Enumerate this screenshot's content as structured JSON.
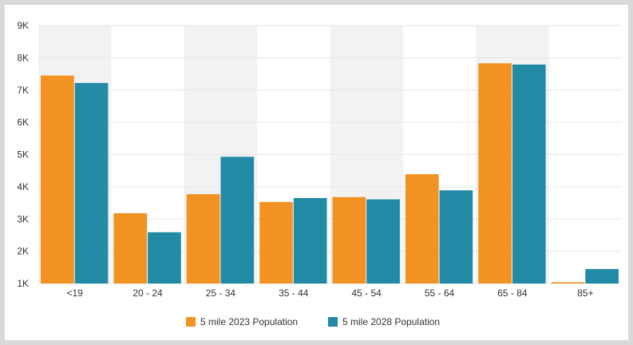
{
  "chart_data": {
    "type": "bar",
    "title": "",
    "xlabel": "",
    "ylabel": "",
    "categories": [
      "<19",
      "20 - 24",
      "25 - 34",
      "35 - 44",
      "45 - 54",
      "55 - 64",
      "65 - 84",
      "85+"
    ],
    "series": [
      {
        "name": "5 mile 2023 Population",
        "color": "#f29222",
        "values": [
          7450,
          3180,
          3770,
          3530,
          3680,
          4390,
          7830,
          1040
        ]
      },
      {
        "name": "5 mile 2028 Population",
        "color": "#238aa6",
        "values": [
          7220,
          2590,
          4930,
          3650,
          3610,
          3890,
          7790,
          1450
        ]
      }
    ],
    "ylim": [
      1000,
      9000
    ],
    "yticks": [
      1000,
      2000,
      3000,
      4000,
      5000,
      6000,
      7000,
      8000,
      9000
    ],
    "ytick_labels": [
      "1K",
      "2K",
      "3K",
      "4K",
      "5K",
      "6K",
      "7K",
      "8K",
      "9K"
    ],
    "grid": true,
    "alternating_band_color": "#f2f2f2",
    "legend_position": "bottom-center"
  }
}
